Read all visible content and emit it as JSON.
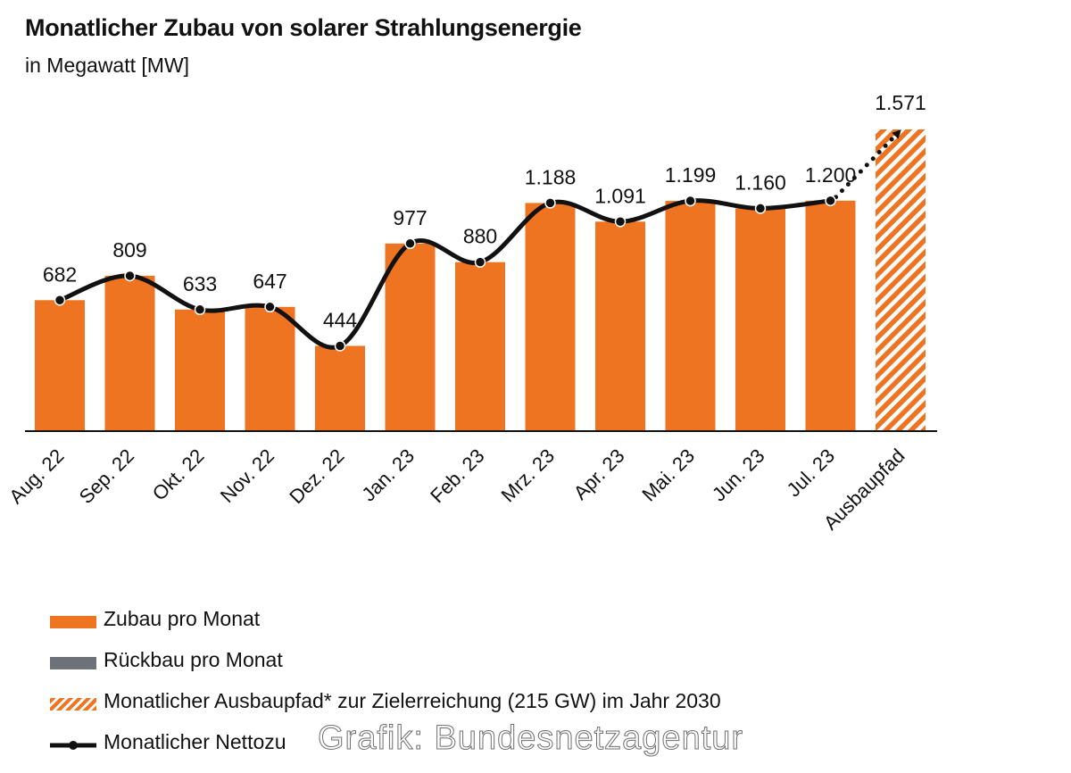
{
  "chart_data": {
    "type": "bar",
    "title": "Monatlicher Zubau von solarer Strahlungsenergie",
    "subtitle": "in Megawatt [MW]",
    "categories": [
      "Aug. 22",
      "Sep. 22",
      "Okt. 22",
      "Nov. 22",
      "Dez. 22",
      "Jan. 23",
      "Feb. 23",
      "Mrz. 23",
      "Apr. 23",
      "Mai. 23",
      "Jun. 23",
      "Jul. 23",
      "Ausbaupfad"
    ],
    "series": [
      {
        "name": "Zubau pro Monat",
        "type": "bar",
        "color": "#ee7421",
        "values": [
          682,
          809,
          633,
          647,
          444,
          977,
          880,
          1188,
          1091,
          1199,
          1160,
          1200,
          null
        ]
      },
      {
        "name": "Rückbau pro Monat",
        "type": "bar",
        "color": "#6c7278",
        "values": [
          null,
          null,
          null,
          null,
          null,
          null,
          null,
          null,
          null,
          null,
          null,
          null,
          null
        ]
      },
      {
        "name": "Monatlicher Ausbaupfad* zur Zielerreichung (215 GW) im Jahr 2030",
        "type": "bar-hatched",
        "color": "#ee7421",
        "values": [
          null,
          null,
          null,
          null,
          null,
          null,
          null,
          null,
          null,
          null,
          null,
          null,
          1571
        ]
      },
      {
        "name": "Monatlicher Nettozubau (Zubau abzgl. Rückbau)",
        "type": "line",
        "color": "#111111",
        "values": [
          682,
          809,
          633,
          647,
          444,
          977,
          880,
          1188,
          1091,
          1199,
          1160,
          1200,
          1571
        ]
      }
    ],
    "data_labels": [
      "682",
      "809",
      "633",
      "647",
      "444",
      "977",
      "880",
      "1.188",
      "1.091",
      "1.199",
      "1.160",
      "1.200",
      "1.571"
    ],
    "ylim": [
      0,
      1571
    ],
    "grid": false,
    "legend_position": "bottom-left"
  },
  "legend": {
    "items": [
      {
        "label": "Zubau pro Monat",
        "icon": "orange-bar-swatch"
      },
      {
        "label": "Rückbau pro Monat",
        "icon": "gray-bar-swatch"
      },
      {
        "label": "Monatlicher Ausbaupfad* zur Zielerreichung (215 GW) im Jahr 2030",
        "icon": "hatched-orange-swatch"
      },
      {
        "label": "Monatlicher Nettozu",
        "icon": "line-with-dots-swatch"
      }
    ]
  },
  "watermark": "Grafik: Bundesnetzagentur"
}
